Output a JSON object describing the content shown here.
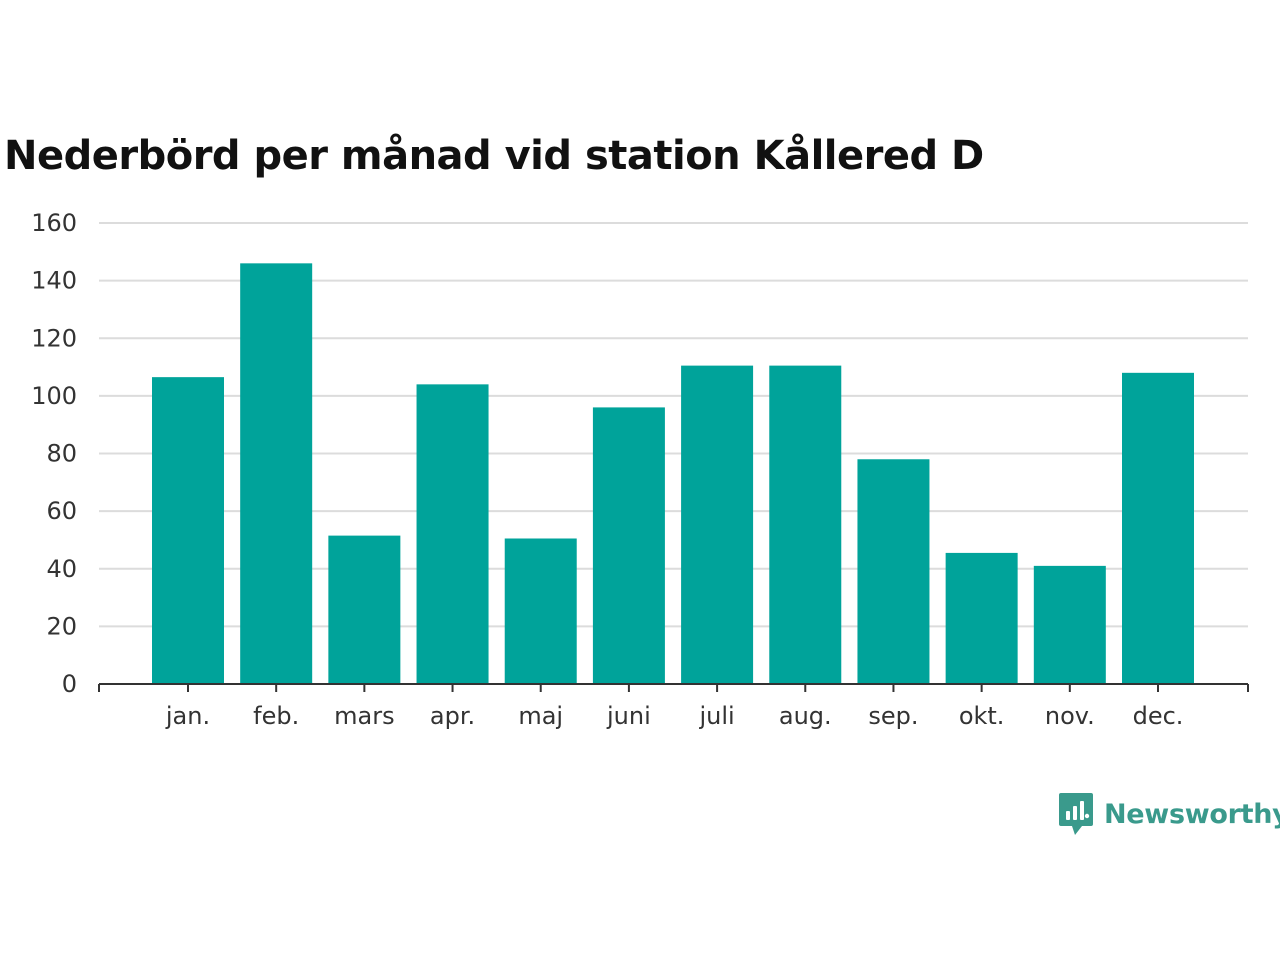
{
  "chart_data": {
    "type": "bar",
    "title": "Nederbörd per månad vid station Kållered D",
    "xlabel": "",
    "ylabel": "",
    "categories": [
      "jan.",
      "feb.",
      "mars",
      "apr.",
      "maj",
      "juni",
      "juli",
      "aug.",
      "sep.",
      "okt.",
      "nov.",
      "dec."
    ],
    "values": [
      106.5,
      146,
      51.5,
      104,
      50.5,
      96,
      110.5,
      110.5,
      78,
      45.5,
      41,
      108
    ],
    "ylim": [
      0,
      160
    ],
    "yticks": [
      "0",
      "20",
      "40",
      "60",
      "80",
      "100",
      "120",
      "140",
      "160"
    ],
    "grid": true,
    "bar_color": "#00a39a"
  },
  "brand": {
    "name": "Newsworthy",
    "color": "#3a9a8c",
    "icon": "newsworthy-logo-icon"
  }
}
